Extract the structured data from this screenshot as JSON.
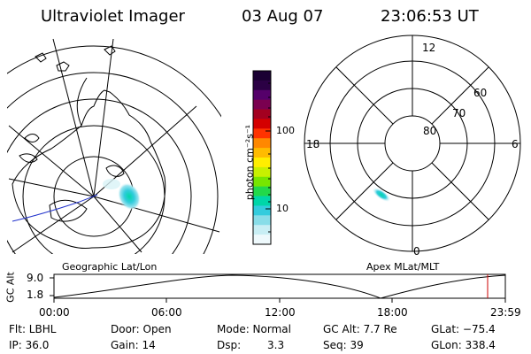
{
  "header": {
    "title": "Ultraviolet Imager",
    "date": "03 Aug 07",
    "time": "23:06:53 UT"
  },
  "colorbar": {
    "unit_label": "photon cm⁻²s⁻¹",
    "tick_100": "100",
    "tick_10": "10",
    "colors_top_to_bottom": [
      "#1a0033",
      "#2b0044",
      "#55006a",
      "#7a0050",
      "#a30020",
      "#d40000",
      "#ff3300",
      "#ff8800",
      "#ffbb00",
      "#ffee00",
      "#c8f000",
      "#77e600",
      "#22d94a",
      "#00d6a8",
      "#33ccdd",
      "#88dde8",
      "#c8eef4",
      "#eef9fc"
    ]
  },
  "left_map": {
    "label": "Geographic Lat/Lon"
  },
  "right_map": {
    "label": "Apex MLat/MLT",
    "mlt_labels": {
      "top": "12",
      "left": "18",
      "right": "6",
      "bottom": "0"
    },
    "mlat_labels": [
      "60",
      "70",
      "80"
    ]
  },
  "alt_plot": {
    "ylabel": "GC Alt",
    "y_ticks": [
      "9.0",
      "1.8"
    ],
    "x_ticks": [
      "00:00",
      "06:00",
      "12:00",
      "18:00",
      "23:59"
    ],
    "current_time_color": "#cc0000"
  },
  "info": {
    "flt": "Flt: LBHL",
    "ip": "IP: 36.0",
    "door": "Door: Open",
    "gain": "Gain: 14",
    "mode": "Mode: Normal",
    "dsp_label": "Dsp:",
    "dsp_value": "3.3",
    "gc_alt": "GC Alt: 7.7 Re",
    "seq": "Seq: 39",
    "glat": "GLat: −75.4",
    "glon": "GLon: 338.4"
  }
}
